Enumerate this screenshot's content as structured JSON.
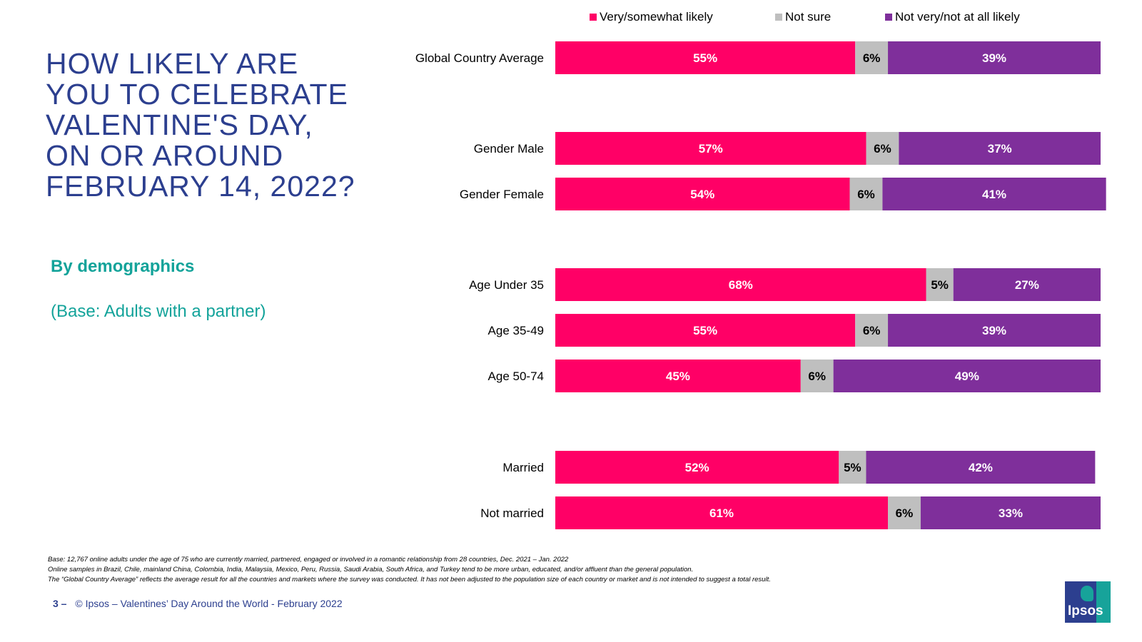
{
  "title": "HOW LIKELY ARE\nYOU TO CELEBRATE\nVALENTINE'S DAY,\nON OR AROUND\nFEBRUARY 14, 2022?",
  "subtitle": "By demographics",
  "base_note": "(Base: Adults with a partner)",
  "colors": {
    "likely": "#ff0066",
    "not_sure": "#bfbfbf",
    "not_likely": "#7f2f9b",
    "title": "#2c3f8f",
    "subtitle": "#13a39a"
  },
  "legend": [
    {
      "label": "Very/somewhat likely",
      "color": "#ff0066"
    },
    {
      "label": "Not sure",
      "color": "#bfbfbf"
    },
    {
      "label": "Not very/not at all likely",
      "color": "#7f2f9b"
    }
  ],
  "chart_data": {
    "type": "bar",
    "orientation": "horizontal",
    "stacked": true,
    "xlim": [
      0,
      100
    ],
    "categories": [
      "Global Country Average",
      "Gender Male",
      "Gender Female",
      "Age Under 35",
      "Age 35-49",
      "Age 50-74",
      "Married",
      "Not married"
    ],
    "groups": [
      [
        0
      ],
      [
        1,
        2
      ],
      [
        3,
        4,
        5
      ],
      [
        6,
        7
      ]
    ],
    "series": [
      {
        "name": "Very/somewhat likely",
        "color": "#ff0066",
        "label_color": "#ffffff",
        "values": [
          55,
          57,
          54,
          68,
          55,
          45,
          52,
          61
        ]
      },
      {
        "name": "Not sure",
        "color": "#bfbfbf",
        "label_color": "#000000",
        "values": [
          6,
          6,
          6,
          5,
          6,
          6,
          5,
          6
        ]
      },
      {
        "name": "Not very/not at all likely",
        "color": "#7f2f9b",
        "label_color": "#ffffff",
        "values": [
          39,
          37,
          41,
          27,
          39,
          49,
          42,
          33
        ]
      }
    ],
    "data_labels": [
      [
        "55%",
        "57%",
        "54%",
        "68%",
        "55%",
        "45%",
        "52%",
        "61%"
      ],
      [
        "6%",
        "6%",
        "6%",
        "5%",
        "6%",
        "6%",
        "5%",
        "6%"
      ],
      [
        "39%",
        "37%",
        "41%",
        "27%",
        "39%",
        "49%",
        "42%",
        "33%"
      ]
    ],
    "legend_position": "top"
  },
  "footnotes": [
    "Base: 12,767 online adults under the age of 75 who are currently married, partnered, engaged or involved in a romantic relationship from 28 countries, Dec. 2021 – Jan. 2022",
    "Online samples in Brazil, Chile, mainland China, Colombia, India, Malaysia, Mexico, Peru, Russia, Saudi Arabia, South Africa, and Turkey tend to be more urban, educated, and/or affluent than the general population.",
    "The “Global  Country Average” reflects the average result for all the countries and markets where the survey was conducted. It has not been adjusted to the population size of each country or market and is not intended to suggest a total result."
  ],
  "footer": {
    "page": "3 –",
    "text": "© Ipsos – Valentines’ Day Around the World - February 2022"
  },
  "logo": {
    "text": "Ipsos"
  }
}
